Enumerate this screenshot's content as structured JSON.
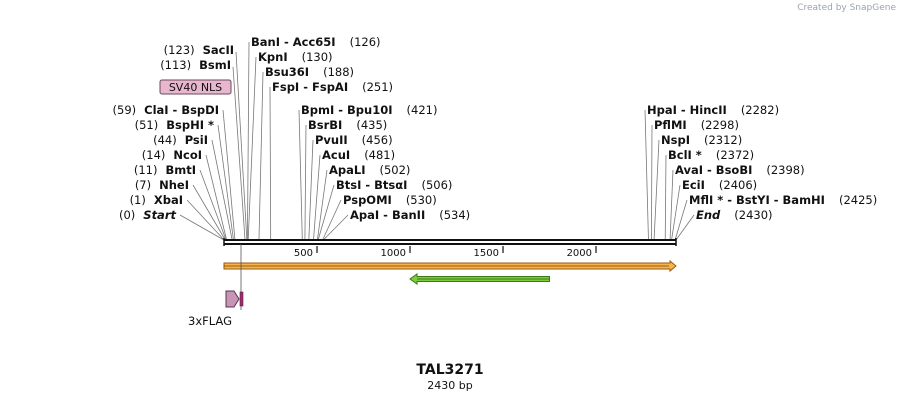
{
  "credit": "Created by SnapGene",
  "plasmid": {
    "name": "TAL3271",
    "size_label": "2430 bp",
    "length": 2430
  },
  "ruler": {
    "ticks": [
      500,
      1000,
      1500,
      2000
    ]
  },
  "left_sites": [
    {
      "pos": 0,
      "label": "Start",
      "italic": true
    },
    {
      "pos": 1,
      "label": "XbaI"
    },
    {
      "pos": 7,
      "label": "NheI"
    },
    {
      "pos": 11,
      "label": "BmtI"
    },
    {
      "pos": 14,
      "label": "NcoI"
    },
    {
      "pos": 44,
      "label": "PsiI"
    },
    {
      "pos": 51,
      "label": "BspHI *"
    },
    {
      "pos": 59,
      "label": "ClaI  - BspDI"
    }
  ],
  "upper_left_sites": [
    {
      "pos": 113,
      "label": "BsmI"
    },
    {
      "pos": 123,
      "label": "SacII"
    }
  ],
  "upper_right_sites": [
    {
      "pos": 126,
      "label": "BanI  - Acc65I"
    },
    {
      "pos": 130,
      "label": "KpnI"
    },
    {
      "pos": 188,
      "label": "Bsu36I"
    },
    {
      "pos": 251,
      "label": "FspI  - FspAI"
    }
  ],
  "middle_sites": [
    {
      "pos": 421,
      "label": "BpmI  - Bpu10I"
    },
    {
      "pos": 435,
      "label": "BsrBI"
    },
    {
      "pos": 456,
      "label": "PvuII"
    },
    {
      "pos": 481,
      "label": "AcuI"
    },
    {
      "pos": 502,
      "label": "ApaLI"
    },
    {
      "pos": 506,
      "label": "BtsI  - BtsαI"
    },
    {
      "pos": 530,
      "label": "PspOMI"
    },
    {
      "pos": 534,
      "label": "ApaI  - BanII"
    }
  ],
  "right_sites": [
    {
      "pos": 2282,
      "label": "HpaI  - HincII"
    },
    {
      "pos": 2298,
      "label": "PflMI"
    },
    {
      "pos": 2312,
      "label": "NspI"
    },
    {
      "pos": 2372,
      "label": "BclI *"
    },
    {
      "pos": 2398,
      "label": "AvaI  - BsoBI"
    },
    {
      "pos": 2406,
      "label": "EciI"
    },
    {
      "pos": 2425,
      "label": "MflI * - BstYI  - BamHI"
    },
    {
      "pos": 2430,
      "label": "End",
      "italic": true
    }
  ],
  "features": {
    "sv40_nls": {
      "label": "SV40 NLS",
      "color": "#e8b7cf"
    },
    "flag": {
      "label": "3xFLAG",
      "color": "#c795b6"
    },
    "orange_arrow": {
      "start": 0,
      "end": 2430,
      "color": "#f6b44c"
    },
    "green_arrow": {
      "start": 1000,
      "end": 1750,
      "color": "#7ccc3c"
    }
  }
}
